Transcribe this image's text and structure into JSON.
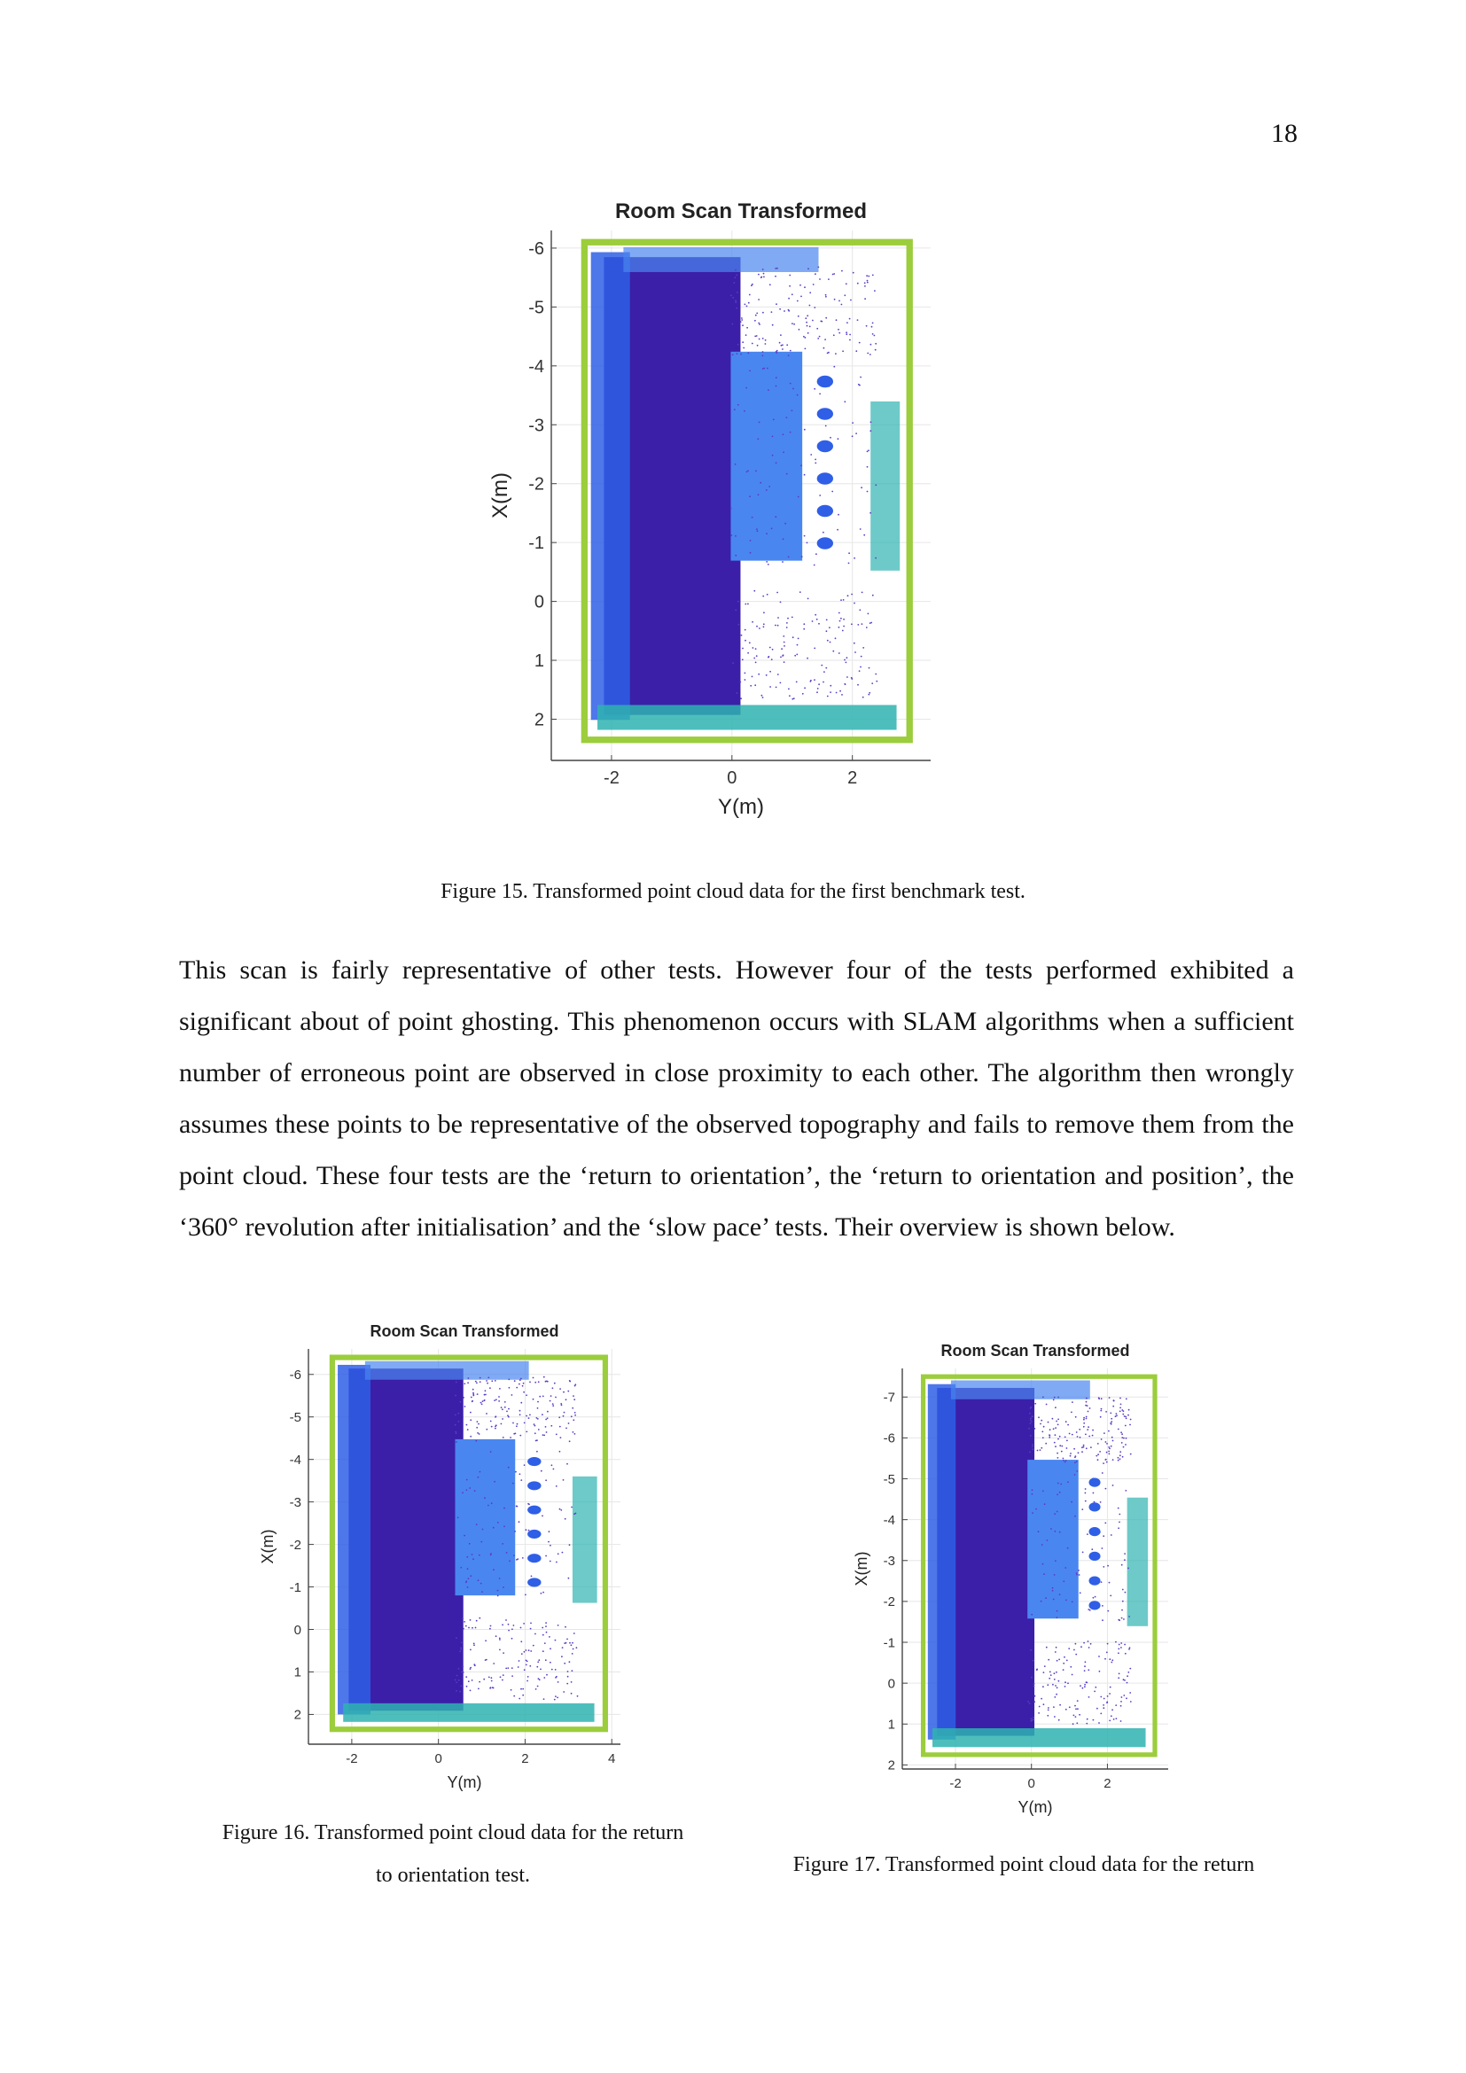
{
  "page_number": "18",
  "figures": [
    {
      "caption": "Figure 15. Transformed point cloud data for the first benchmark test."
    },
    {
      "caption_lines": [
        "Figure 16. Transformed point cloud data for the return",
        "to orientation test."
      ]
    },
    {
      "caption": "Figure 17. Transformed point cloud data for the return"
    }
  ],
  "paragraph": "This scan is fairly representative of other tests. However four of the tests performed exhibited a significant about of point ghosting. This phenomenon occurs with SLAM algorithms when a sufficient number of erroneous point are observed in close proximity to each other. The algorithm then wrongly assumes these points to be representative of the observed topography and fails to remove them from the point cloud. These four tests are the ‘return to orientation’, the ‘return to orientation and position’, the ‘360° revolution after initialisation’ and the ‘slow pace’ tests. Their overview is shown below.",
  "colors": {
    "deep_purple": "#3b1fa8",
    "royal_blue": "#2f5fe6",
    "light_blue": "#4a86f0",
    "teal": "#2fb3b0",
    "lime": "#9ccd3c",
    "sparse_dots": "#5b3cc4"
  },
  "chart_data": [
    {
      "type": "scatter",
      "title": "Room Scan Transformed",
      "xlabel": "Y(m)",
      "ylabel": "X(m)",
      "x_ticks": [
        "-2",
        "0",
        "2"
      ],
      "y_ticks": [
        "-6",
        "-5",
        "-4",
        "-3",
        "-2",
        "-1",
        "0",
        "1",
        "2"
      ],
      "xlim": [
        -3,
        3.3
      ],
      "ylim": [
        -6.3,
        2.7
      ],
      "y_reversed": true,
      "grid": true
    },
    {
      "type": "scatter",
      "title": "Room Scan Transformed",
      "xlabel": "Y(m)",
      "ylabel": "X(m)",
      "x_ticks": [
        "-2",
        "0",
        "2",
        "4"
      ],
      "y_ticks": [
        "-6",
        "-5",
        "-4",
        "-3",
        "-2",
        "-1",
        "0",
        "1",
        "2"
      ],
      "xlim": [
        -3,
        4.2
      ],
      "ylim": [
        -6.6,
        2.7
      ],
      "y_reversed": true,
      "grid": true
    },
    {
      "type": "scatter",
      "title": "Room Scan Transformed",
      "xlabel": "Y(m)",
      "ylabel": "X(m)",
      "x_ticks": [
        "-2",
        "0",
        "2"
      ],
      "y_ticks": [
        "-7",
        "-6",
        "-5",
        "-4",
        "-3",
        "-2",
        "-1",
        "0",
        "1",
        "2"
      ],
      "xlim": [
        -3.4,
        3.6
      ],
      "ylim": [
        -7.7,
        2.1
      ],
      "y_reversed": true,
      "grid": true
    }
  ]
}
